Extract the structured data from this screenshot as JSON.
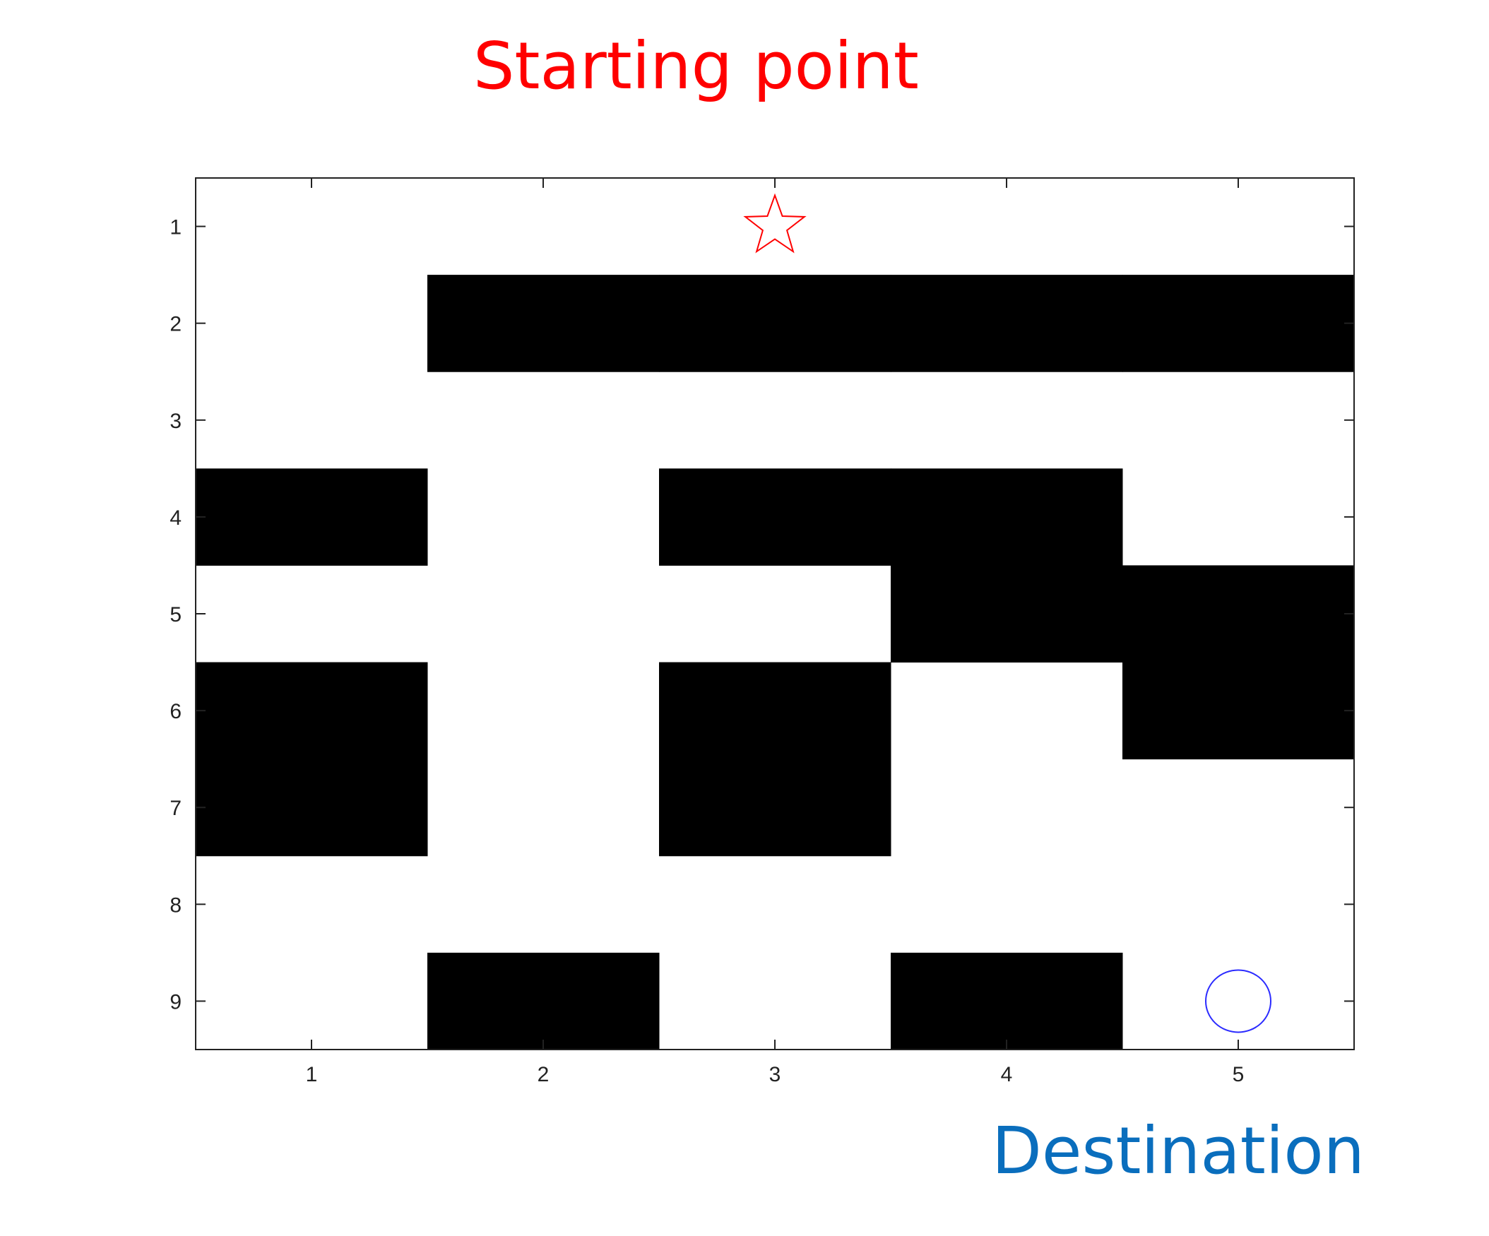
{
  "labels": {
    "start": "Starting point",
    "destination": "Destination"
  },
  "colors": {
    "start": "#ff0000",
    "destination": "#0a6ebd",
    "marker_start": "#ff0000",
    "marker_destination": "#2b2bff",
    "wall": "#000000",
    "free": "#ffffff"
  },
  "grid": {
    "rows": 9,
    "cols": 5,
    "x_ticks": [
      "1",
      "2",
      "3",
      "4",
      "5"
    ],
    "y_ticks": [
      "1",
      "2",
      "3",
      "4",
      "5",
      "6",
      "7",
      "8",
      "9"
    ],
    "cells": [
      [
        0,
        0,
        0,
        0,
        0
      ],
      [
        0,
        1,
        1,
        1,
        1
      ],
      [
        0,
        0,
        0,
        0,
        0
      ],
      [
        1,
        0,
        1,
        1,
        0
      ],
      [
        0,
        0,
        0,
        1,
        1
      ],
      [
        1,
        0,
        1,
        0,
        1
      ],
      [
        1,
        0,
        1,
        0,
        0
      ],
      [
        0,
        0,
        0,
        0,
        0
      ],
      [
        0,
        1,
        0,
        1,
        0
      ]
    ],
    "start": {
      "row": 1,
      "col": 3,
      "marker": "star-icon"
    },
    "destination": {
      "row": 9,
      "col": 5,
      "marker": "circle-icon"
    }
  }
}
